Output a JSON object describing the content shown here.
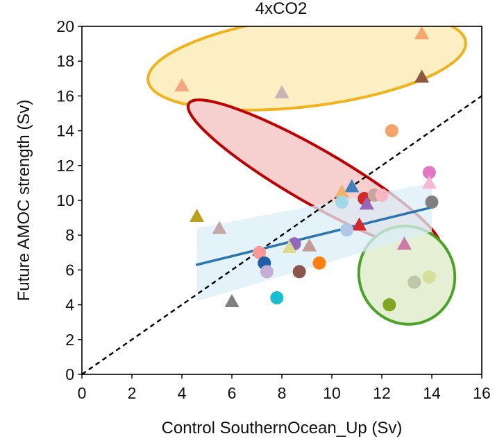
{
  "chart_data": {
    "type": "scatter",
    "title": "4xCO2",
    "xlabel": "Control SouthernOcean_Up (Sv)",
    "ylabel": "Future AMOC strength (Sv)",
    "xlim": [
      0,
      16
    ],
    "ylim": [
      0,
      20
    ],
    "xticks": [
      0,
      2,
      4,
      6,
      8,
      10,
      12,
      14,
      16
    ],
    "yticks": [
      0,
      2,
      4,
      6,
      8,
      10,
      12,
      14,
      16,
      18,
      20
    ],
    "grid": false,
    "legend": "none",
    "points": [
      {
        "x": 4.0,
        "y": 16.6,
        "marker": "triangle",
        "color": "#f4a582"
      },
      {
        "x": 8.0,
        "y": 16.2,
        "marker": "triangle",
        "color": "#c9b3b8"
      },
      {
        "x": 13.6,
        "y": 19.6,
        "marker": "triangle",
        "color": "#f6a66b"
      },
      {
        "x": 13.6,
        "y": 17.1,
        "marker": "triangle",
        "color": "#8c5a3c"
      },
      {
        "x": 12.4,
        "y": 14.0,
        "marker": "circle",
        "color": "#f4a36b"
      },
      {
        "x": 4.6,
        "y": 9.1,
        "marker": "triangle",
        "color": "#b8a21c"
      },
      {
        "x": 5.5,
        "y": 8.4,
        "marker": "triangle",
        "color": "#c4a8a4"
      },
      {
        "x": 10.8,
        "y": 10.8,
        "marker": "triangle",
        "color": "#3d7fbf"
      },
      {
        "x": 10.4,
        "y": 10.5,
        "marker": "triangle",
        "color": "#f2b36e"
      },
      {
        "x": 10.4,
        "y": 9.9,
        "marker": "circle",
        "color": "#9fd8e8"
      },
      {
        "x": 11.3,
        "y": 10.1,
        "marker": "circle",
        "color": "#d62728"
      },
      {
        "x": 11.4,
        "y": 9.8,
        "marker": "triangle",
        "color": "#9467bd"
      },
      {
        "x": 11.7,
        "y": 10.3,
        "marker": "circle",
        "color": "#c7a59f"
      },
      {
        "x": 12.0,
        "y": 10.3,
        "marker": "circle",
        "color": "#f7b6c2"
      },
      {
        "x": 13.9,
        "y": 11.6,
        "marker": "circle",
        "color": "#e377c2"
      },
      {
        "x": 13.9,
        "y": 11.0,
        "marker": "triangle",
        "color": "#f7b6d2"
      },
      {
        "x": 14.0,
        "y": 9.9,
        "marker": "circle",
        "color": "#7f7f7f"
      },
      {
        "x": 11.1,
        "y": 8.6,
        "marker": "triangle",
        "color": "#d62728"
      },
      {
        "x": 10.6,
        "y": 8.3,
        "marker": "circle",
        "color": "#aec7e8"
      },
      {
        "x": 12.9,
        "y": 7.5,
        "marker": "triangle",
        "color": "#cc79a7"
      },
      {
        "x": 7.1,
        "y": 7.0,
        "marker": "circle",
        "color": "#ff9896"
      },
      {
        "x": 8.5,
        "y": 7.5,
        "marker": "circle",
        "color": "#9467bd"
      },
      {
        "x": 8.3,
        "y": 7.3,
        "marker": "triangle",
        "color": "#dbdb8d"
      },
      {
        "x": 9.1,
        "y": 7.4,
        "marker": "triangle",
        "color": "#c49c94"
      },
      {
        "x": 7.3,
        "y": 6.4,
        "marker": "circle",
        "color": "#1f5fa8"
      },
      {
        "x": 7.4,
        "y": 5.9,
        "marker": "circle",
        "color": "#c5b0d5"
      },
      {
        "x": 8.7,
        "y": 5.9,
        "marker": "circle",
        "color": "#8c564b"
      },
      {
        "x": 9.5,
        "y": 6.4,
        "marker": "circle",
        "color": "#ff7f0e"
      },
      {
        "x": 6.0,
        "y": 4.2,
        "marker": "triangle",
        "color": "#7f7f7f"
      },
      {
        "x": 7.8,
        "y": 4.4,
        "marker": "circle",
        "color": "#17becf"
      },
      {
        "x": 12.3,
        "y": 4.0,
        "marker": "circle",
        "color": "#7fa61e"
      },
      {
        "x": 13.3,
        "y": 5.3,
        "marker": "circle",
        "color": "#bfc7a8"
      },
      {
        "x": 13.9,
        "y": 5.6,
        "marker": "circle",
        "color": "#d6e09a"
      }
    ],
    "reference_line": {
      "x": [
        0,
        16
      ],
      "y": [
        0,
        16
      ],
      "style": "dashed",
      "color": "#000000"
    },
    "regression_line": {
      "x": [
        4.6,
        14.0
      ],
      "y": [
        6.3,
        9.6
      ],
      "color": "#2a74b0"
    },
    "confidence_band": {
      "x": [
        4.6,
        14.0
      ],
      "upper": [
        8.4,
        11.0
      ],
      "lower": [
        4.2,
        8.2
      ],
      "color": "#dbeef8"
    },
    "highlight_ellipses": [
      {
        "cx": 9.0,
        "cy": 18.0,
        "rx": 6.4,
        "ry": 2.6,
        "angle_deg": 7,
        "fill": "#fdefc4",
        "stroke": "#f2b21a"
      },
      {
        "cx": 9.3,
        "cy": 11.4,
        "rx": 5.8,
        "ry": 1.55,
        "angle_deg": -30,
        "fill": "#f6d0cf",
        "stroke": "#c00000"
      },
      {
        "cx": 13.0,
        "cy": 5.7,
        "rx": 1.9,
        "ry": 2.85,
        "angle_deg": 30,
        "fill": "#e4efd3",
        "stroke": "#4aa327"
      }
    ]
  }
}
